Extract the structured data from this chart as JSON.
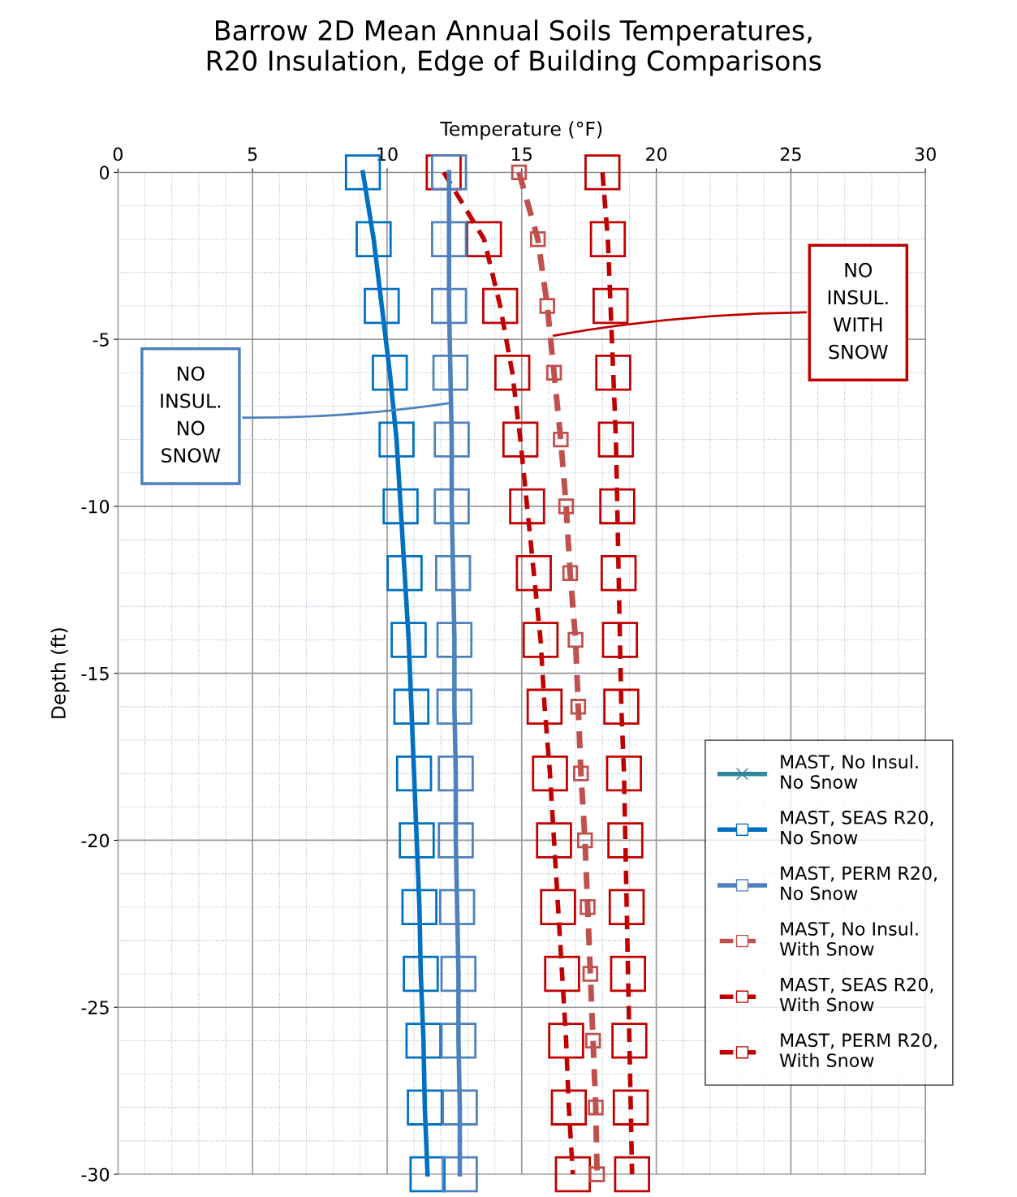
{
  "chart_data": {
    "type": "line",
    "title": "Barrow 2D Mean Annual Soils Temperatures,\nR20 Insulation, Edge of Building Comparisons",
    "xlabel": "Temperature (°F)",
    "ylabel": "Depth (ft)",
    "xlim": [
      0,
      30
    ],
    "xticks": [
      0,
      5,
      10,
      15,
      20,
      25,
      30
    ],
    "ylim": [
      -30,
      0
    ],
    "yticks": [
      0,
      -5,
      -10,
      -15,
      -20,
      -25,
      -30
    ],
    "grid": true,
    "legend": "bottom right",
    "series": [
      {
        "name": "MAST, No Insul.\nNo Snow",
        "color": "#31859c",
        "marker": "cross",
        "line_style": "solid",
        "x": [
          null,
          null,
          null,
          null,
          null,
          null,
          null,
          null,
          null,
          null,
          null,
          null,
          null,
          null,
          null,
          null
        ],
        "values": [
          null,
          null,
          null,
          null,
          null,
          null,
          null,
          null,
          null,
          null,
          null,
          null,
          null,
          null,
          null,
          null
        ]
      },
      {
        "name": "MAST, SEAS R20,\nNo Snow",
        "color": "#0070c0",
        "marker": "square",
        "line_style": "solid",
        "x": [
          9.1,
          9.5,
          9.8,
          10.1,
          10.35,
          10.5,
          10.65,
          10.8,
          10.9,
          11.0,
          11.1,
          11.2,
          11.25,
          11.35,
          11.4,
          11.5
        ],
        "values": [
          0,
          -2,
          -4,
          -6,
          -8,
          -10,
          -12,
          -14,
          -16,
          -18,
          -20,
          -22,
          -24,
          -26,
          -28,
          -30
        ]
      },
      {
        "name": "MAST, PERM R20,\nNo Snow",
        "color": "#4f81bd",
        "marker": "square",
        "line_style": "solid",
        "x": [
          12.3,
          12.3,
          12.3,
          12.35,
          12.4,
          12.4,
          12.45,
          12.5,
          12.5,
          12.55,
          12.55,
          12.6,
          12.65,
          12.65,
          12.7,
          12.7
        ],
        "values": [
          0,
          -2,
          -4,
          -6,
          -8,
          -10,
          -12,
          -14,
          -16,
          -18,
          -20,
          -22,
          -24,
          -26,
          -28,
          -30
        ]
      },
      {
        "name": "MAST, No Insul.\nWith Snow",
        "color": "#c0504d",
        "marker": "square",
        "line_style": "dashed",
        "x": [
          14.9,
          15.6,
          15.95,
          16.2,
          16.45,
          16.65,
          16.8,
          17.0,
          17.1,
          17.2,
          17.35,
          17.45,
          17.55,
          17.65,
          17.75,
          17.8
        ],
        "values": [
          0,
          -2,
          -4,
          -6,
          -8,
          -10,
          -12,
          -14,
          -16,
          -18,
          -20,
          -22,
          -24,
          -26,
          -28,
          -30
        ]
      },
      {
        "name": "MAST, SEAS R20,\nWith Snow",
        "color": "#c00000",
        "marker": "square",
        "line_style": "dashed",
        "x": [
          12.1,
          13.6,
          14.2,
          14.65,
          14.95,
          15.2,
          15.45,
          15.7,
          15.85,
          16.05,
          16.2,
          16.35,
          16.5,
          16.65,
          16.75,
          16.9
        ],
        "values": [
          0,
          -2,
          -4,
          -6,
          -8,
          -10,
          -12,
          -14,
          -16,
          -18,
          -20,
          -22,
          -24,
          -26,
          -28,
          -30
        ]
      },
      {
        "name": "MAST, PERM R20,\nWith Snow",
        "color": "#c00000",
        "marker": "square",
        "line_style": "dashed",
        "x": [
          18.0,
          18.2,
          18.3,
          18.4,
          18.5,
          18.55,
          18.6,
          18.65,
          18.7,
          18.8,
          18.85,
          18.9,
          18.95,
          19.0,
          19.05,
          19.1
        ],
        "values": [
          0,
          -2,
          -4,
          -6,
          -8,
          -10,
          -12,
          -14,
          -16,
          -18,
          -20,
          -22,
          -24,
          -26,
          -28,
          -30
        ]
      }
    ],
    "annotations": [
      {
        "text": "NO\nINSUL.\nNO\nSNOW",
        "x": 12.37,
        "y": -6.9
      },
      {
        "text": "NO\nINSUL.\nWITH\nSNOW",
        "x": 16.1,
        "y": -4.9
      }
    ]
  }
}
